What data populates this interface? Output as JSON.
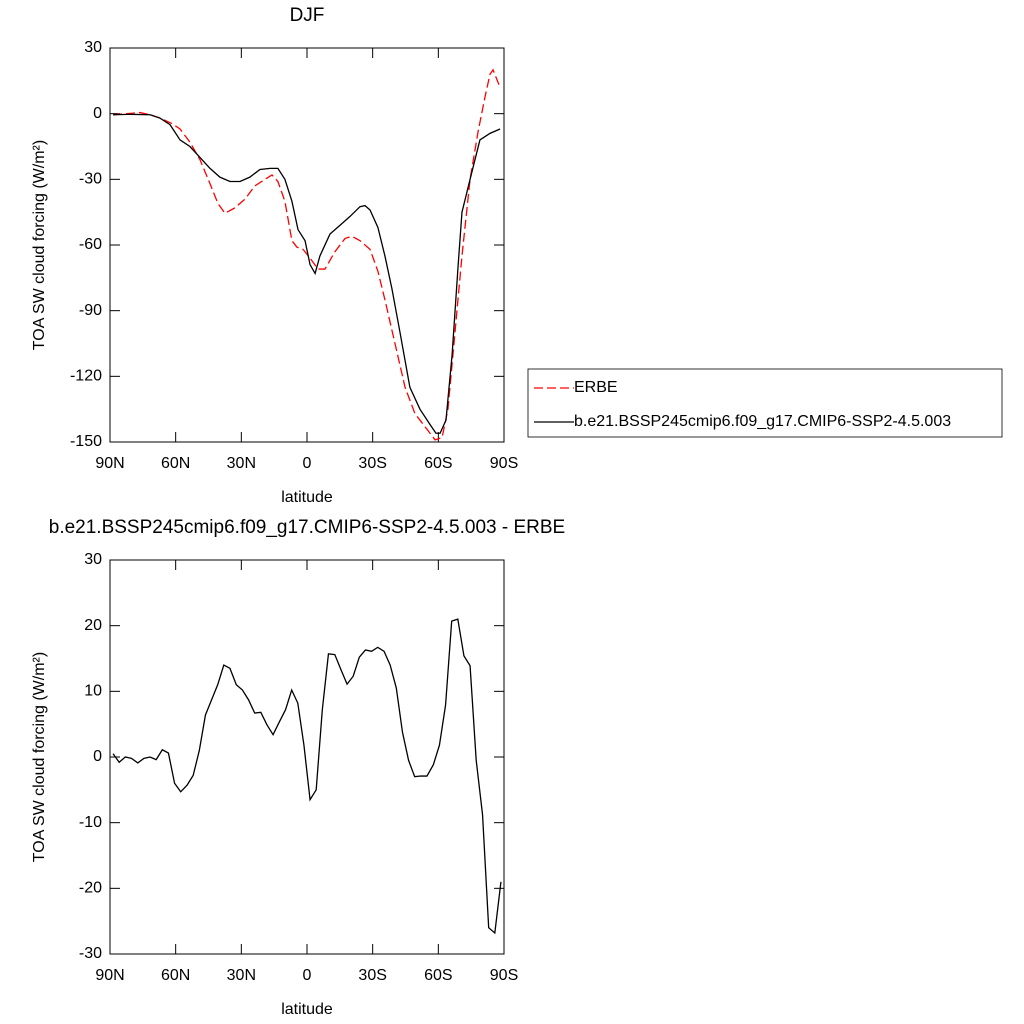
{
  "chart_data": [
    {
      "type": "line",
      "title": "DJF",
      "xlabel": "latitude",
      "ylabel": "TOA SW cloud forcing (W/m²)",
      "xlim": [
        90,
        -90
      ],
      "xticks": [
        {
          "value": 90,
          "label": "90N"
        },
        {
          "value": 60,
          "label": "60N"
        },
        {
          "value": 30,
          "label": "30N"
        },
        0,
        {
          "value": -30,
          "label": "30S"
        },
        {
          "value": -60,
          "label": "60S"
        },
        {
          "value": -90,
          "label": "90S"
        }
      ],
      "ylim": [
        -150,
        30
      ],
      "yticks": [
        -150,
        -120,
        -90,
        -60,
        -30,
        0,
        30
      ],
      "legend": "right",
      "series": [
        {
          "name": "ERBE",
          "color": "#ff0000",
          "dashed": true,
          "x": [
            88.6,
            76.3,
            71.7,
            67.2,
            61.7,
            58.0,
            53.5,
            48.9,
            44.3,
            40.7,
            37.5,
            32.9,
            28.3,
            23.8,
            19.2,
            16.0,
            13.3,
            10.1,
            6.9,
            4.6,
            1.8,
            -1.4,
            -5.0,
            -8.2,
            -12.8,
            -17.4,
            -20.5,
            -24.2,
            -28.8,
            -32.4,
            -35.6,
            -40.2,
            -44.8,
            -49.3,
            -53.9,
            -58.5,
            -61.7,
            -64.4,
            -67.6,
            -70.8,
            -74.5,
            -78.2,
            -81.4,
            -83.6,
            -85.0,
            -88.2
          ],
          "values": [
            -0.5,
            0.5,
            -0.5,
            -2,
            -4.5,
            -7,
            -13,
            -21,
            -32,
            -41,
            -45.5,
            -43,
            -39,
            -33,
            -30,
            -28,
            -31,
            -40,
            -58,
            -61,
            -62,
            -66,
            -71,
            -71,
            -63,
            -57,
            -56,
            -58,
            -62,
            -72,
            -85,
            -105,
            -125,
            -137,
            -143,
            -149,
            -148,
            -135,
            -100,
            -65,
            -30,
            -8,
            8,
            18,
            20,
            12
          ]
        },
        {
          "name": "b.e21.BSSP245cmip6.f09_g17.CMIP6-SSP2-4.5.003",
          "color": "#000000",
          "dashed": false,
          "x": [
            88.6,
            80.9,
            71.7,
            67.2,
            62.6,
            58.0,
            53.5,
            48.9,
            44.3,
            39.8,
            35.2,
            30.6,
            26.1,
            21.5,
            16.9,
            13.3,
            10.1,
            6.9,
            4.1,
            0.9,
            -1.4,
            -3.7,
            -5.9,
            -10.5,
            -15.1,
            -19.6,
            -24.2,
            -26.5,
            -28.8,
            -32.4,
            -35.6,
            -38.8,
            -42.5,
            -47.0,
            -51.6,
            -56.2,
            -58.9,
            -60.8,
            -63.5,
            -66.3,
            -69.0,
            -70.8,
            -74.5,
            -79.0,
            -83.6,
            -88.2
          ],
          "values": [
            -0.5,
            -0.3,
            -0.5,
            -2,
            -5,
            -12,
            -15,
            -20,
            -25,
            -29,
            -31,
            -31,
            -29,
            -25.5,
            -25,
            -25,
            -30,
            -40,
            -53,
            -58,
            -69,
            -73,
            -65,
            -55,
            -51,
            -47,
            -42.5,
            -42,
            -44,
            -52,
            -65,
            -80,
            -100,
            -125,
            -135,
            -142,
            -146,
            -146,
            -140,
            -110,
            -70,
            -45,
            -30,
            -12,
            -9,
            -7
          ]
        }
      ]
    },
    {
      "type": "line",
      "title": "b.e21.BSSP245cmip6.f09_g17.CMIP6-SSP2-4.5.003 - ERBE",
      "xlabel": "latitude",
      "ylabel": "TOA SW cloud forcing (W/m²)",
      "xlim": [
        90,
        -90
      ],
      "xticks": [
        {
          "value": 90,
          "label": "90N"
        },
        {
          "value": 60,
          "label": "60N"
        },
        {
          "value": 30,
          "label": "30N"
        },
        0,
        {
          "value": -30,
          "label": "30S"
        },
        {
          "value": -60,
          "label": "60S"
        },
        {
          "value": -90,
          "label": "90S"
        }
      ],
      "ylim": [
        -30,
        30
      ],
      "yticks": [
        -30,
        -20,
        -10,
        0,
        10,
        20,
        30
      ],
      "color": "#000000",
      "x": [
        88.6,
        85.8,
        83.0,
        80.2,
        77.3,
        74.5,
        71.7,
        68.9,
        66.1,
        63.3,
        60.5,
        57.7,
        54.8,
        52.0,
        49.2,
        46.4,
        43.6,
        40.8,
        38.0,
        35.2,
        32.3,
        29.5,
        26.7,
        23.9,
        21.1,
        18.3,
        15.5,
        12.7,
        9.8,
        7.0,
        4.2,
        1.4,
        -1.4,
        -4.2,
        -7.0,
        -9.8,
        -12.7,
        -15.5,
        -18.3,
        -21.1,
        -23.9,
        -26.7,
        -29.5,
        -32.3,
        -35.2,
        -38.0,
        -40.8,
        -43.6,
        -46.4,
        -49.2,
        -52.0,
        -54.8,
        -57.7,
        -60.5,
        -63.3,
        -66.1,
        -68.9,
        -71.7,
        -74.5,
        -77.3,
        -80.2,
        -83.0,
        -85.8,
        -88.6
      ],
      "values": [
        0.5,
        -0.8,
        0,
        -0.2,
        -0.9,
        -0.2,
        0,
        -0.4,
        1.1,
        0.6,
        -4,
        -5.3,
        -4.3,
        -2.8,
        1,
        6.4,
        8.7,
        11,
        14,
        13.5,
        11,
        10.2,
        8.7,
        6.7,
        6.8,
        4.9,
        3.4,
        5.3,
        7.2,
        10.2,
        8.2,
        1.8,
        -6.5,
        -5,
        7.2,
        15.7,
        15.6,
        13.3,
        11.1,
        12.3,
        15.2,
        16.3,
        16.1,
        16.7,
        16.1,
        14,
        10.5,
        3.8,
        -0.5,
        -3,
        -2.9,
        -2.9,
        -1.2,
        1.8,
        7.9,
        20.7,
        21,
        15.4,
        13.9,
        -0.5,
        -8.8,
        -26,
        -26.8,
        -19
      ]
    }
  ]
}
